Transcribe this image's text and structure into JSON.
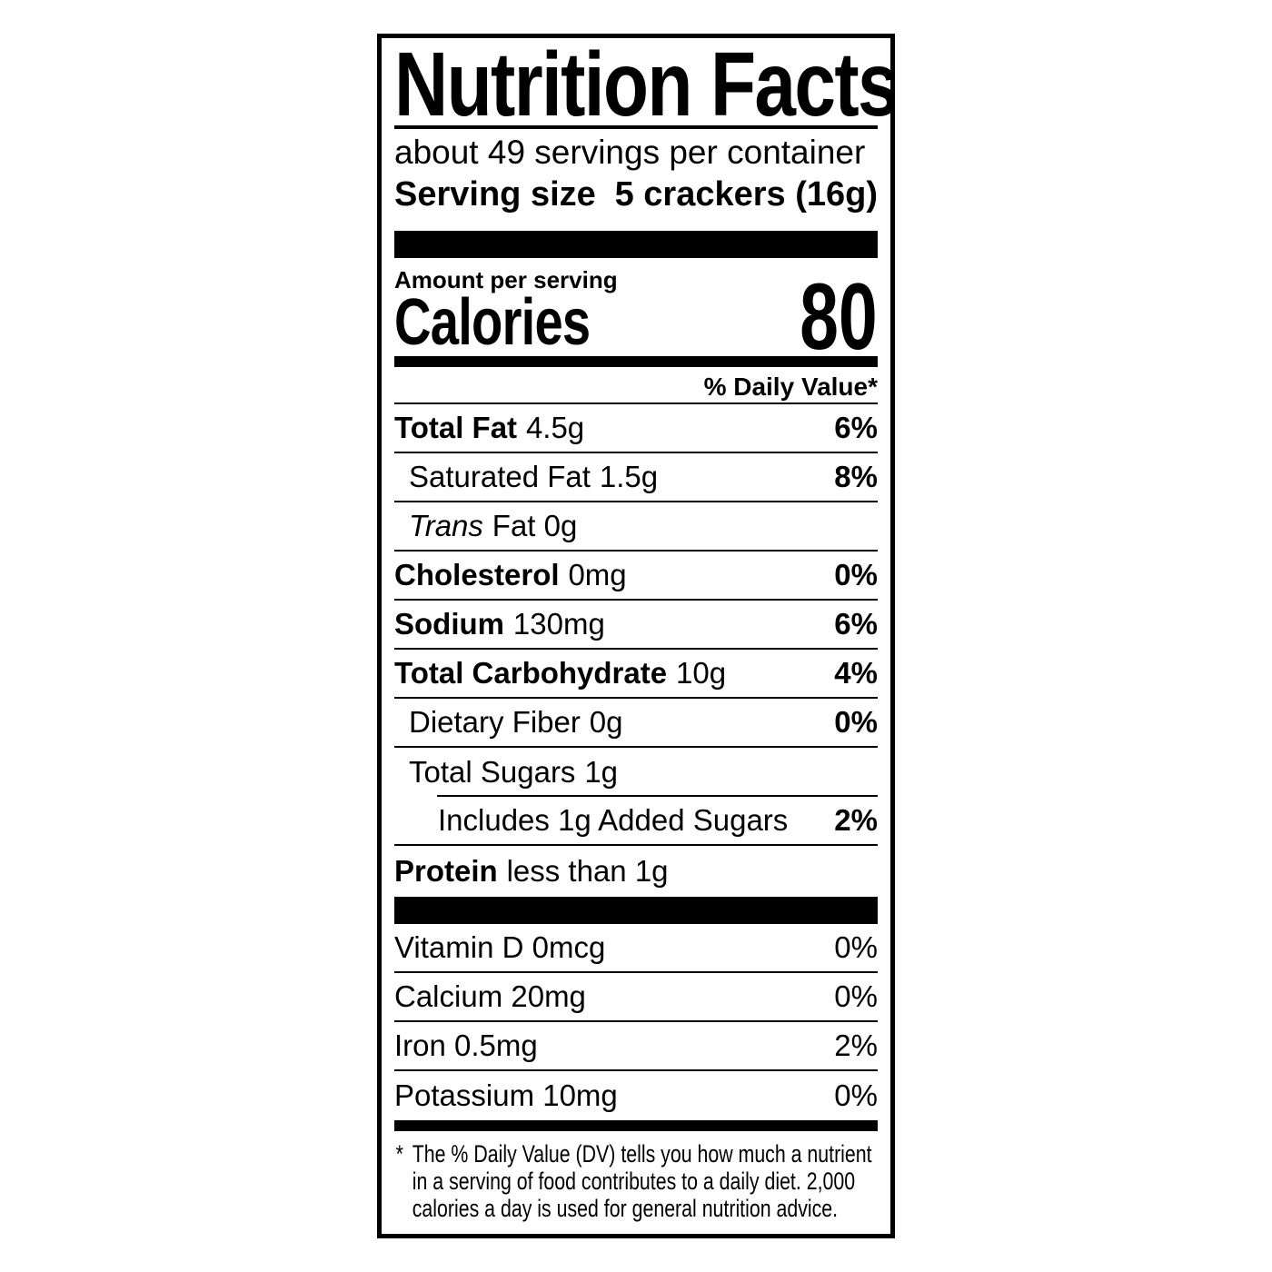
{
  "label": {
    "title": "Nutrition Facts",
    "servings_per_container": "about 49 servings per container",
    "serving_size_label": "Serving size",
    "serving_size_value": "5 crackers (16g)",
    "amount_per_serving": "Amount per serving",
    "calories_label": "Calories",
    "calories_value": "80",
    "daily_value_header": "% Daily Value*",
    "colors": {
      "ink": "#000000",
      "paper": "#ffffff"
    }
  },
  "nutrients": [
    {
      "name": "Total Fat",
      "amount": "4.5g",
      "pct": "6%"
    },
    {
      "name": "Saturated Fat",
      "amount": "1.5g",
      "pct": "8%"
    },
    {
      "name": "Trans",
      "amount": "Fat 0g",
      "pct": null
    },
    {
      "name": "Cholesterol",
      "amount": "0mg",
      "pct": "0%"
    },
    {
      "name": "Sodium",
      "amount": "130mg",
      "pct": "6%"
    },
    {
      "name": "Total Carbohydrate",
      "amount": "10g",
      "pct": "4%"
    },
    {
      "name": "Dietary Fiber",
      "amount": "0g",
      "pct": "0%"
    },
    {
      "name": "Total Sugars",
      "amount": "1g",
      "pct": null
    },
    {
      "name": "Includes 1g Added Sugars",
      "amount": null,
      "pct": "2%"
    },
    {
      "name": "Protein",
      "amount": "less than 1g",
      "pct": null
    }
  ],
  "vitamins": [
    {
      "name": "Vitamin D 0mcg",
      "pct": "0%"
    },
    {
      "name": "Calcium 20mg",
      "pct": "0%"
    },
    {
      "name": "Iron 0.5mg",
      "pct": "2%"
    },
    {
      "name": "Potassium 10mg",
      "pct": "0%"
    }
  ],
  "footnote": {
    "marker": "*",
    "lines": [
      "The % Daily Value (DV) tells you how much a nutrient",
      "in a serving of food contributes to a daily diet. 2,000",
      "calories a day is used for general nutrition advice."
    ]
  }
}
